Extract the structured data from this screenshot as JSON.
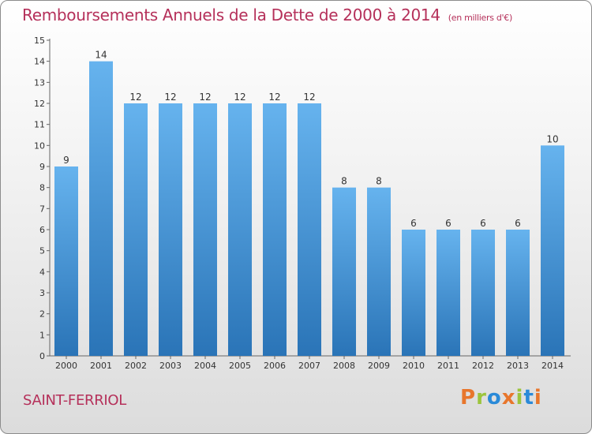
{
  "header": {
    "title": "Remboursements Annuels de la Dette de 2000 à 2014",
    "unit": "(en milliers d'€)"
  },
  "footer": {
    "commune": "SAINT-FERRIOL",
    "logo_text": "Proxiti"
  },
  "colors": {
    "accent": "#b5305a",
    "bar_top": "#66b3ee",
    "bar_bottom": "#2a74b7",
    "logo": [
      "#e8762c",
      "#9cc43c",
      "#2a8ad8",
      "#e8762c",
      "#9cc43c",
      "#2a8ad8",
      "#e8762c"
    ]
  },
  "chart_data": {
    "type": "bar",
    "categories": [
      "2000",
      "2001",
      "2002",
      "2003",
      "2004",
      "2005",
      "2006",
      "2007",
      "2008",
      "2009",
      "2010",
      "2011",
      "2012",
      "2013",
      "2014"
    ],
    "values": [
      9,
      14,
      12,
      12,
      12,
      12,
      12,
      12,
      8,
      8,
      6,
      6,
      6,
      6,
      10
    ],
    "ylim": [
      0,
      15
    ],
    "yticks": [
      0,
      1,
      2,
      3,
      4,
      5,
      6,
      7,
      8,
      9,
      10,
      11,
      12,
      13,
      14,
      15
    ],
    "grid": false,
    "data_labels": true
  }
}
